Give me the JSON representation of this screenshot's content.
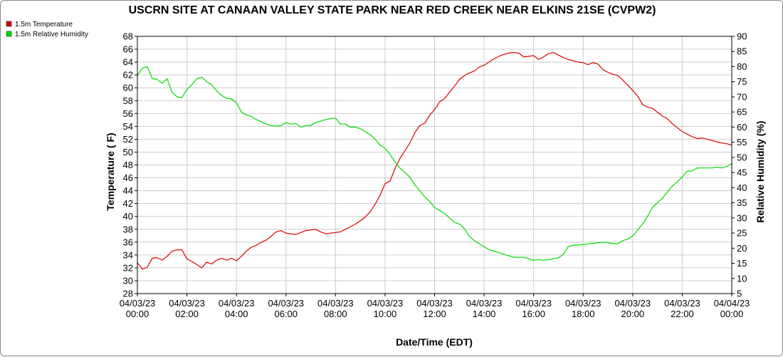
{
  "chart_data": {
    "type": "line",
    "title": "USCRN SITE AT CANAAN VALLEY STATE PARK NEAR RED CREEK NEAR ELKINS 21SE (CVPW2)",
    "xlabel": "Date/Time (EDT)",
    "ylabel_left": "Temperature ( F)",
    "ylabel_right": "Relative Humidity (%)",
    "x_ticks": [
      {
        "date": "04/03/23",
        "time": "00:00",
        "hour": 0
      },
      {
        "date": "04/03/23",
        "time": "02:00",
        "hour": 2
      },
      {
        "date": "04/03/23",
        "time": "04:00",
        "hour": 4
      },
      {
        "date": "04/03/23",
        "time": "06:00",
        "hour": 6
      },
      {
        "date": "04/03/23",
        "time": "08:00",
        "hour": 8
      },
      {
        "date": "04/03/23",
        "time": "10:00",
        "hour": 10
      },
      {
        "date": "04/03/23",
        "time": "12:00",
        "hour": 12
      },
      {
        "date": "04/03/23",
        "time": "14:00",
        "hour": 14
      },
      {
        "date": "04/03/23",
        "time": "16:00",
        "hour": 16
      },
      {
        "date": "04/03/23",
        "time": "18:00",
        "hour": 18
      },
      {
        "date": "04/03/23",
        "time": "20:00",
        "hour": 20
      },
      {
        "date": "04/03/23",
        "time": "22:00",
        "hour": 22
      },
      {
        "date": "04/04/23",
        "time": "00:00",
        "hour": 24
      }
    ],
    "xlim": [
      0,
      24
    ],
    "ylim_left": [
      28,
      68
    ],
    "ylim_right": [
      5,
      90
    ],
    "y_ticks_left": [
      28,
      30,
      32,
      34,
      36,
      38,
      40,
      42,
      44,
      46,
      48,
      50,
      52,
      54,
      56,
      58,
      60,
      62,
      64,
      66,
      68
    ],
    "y_ticks_right": [
      5,
      10,
      15,
      20,
      25,
      30,
      35,
      40,
      45,
      50,
      55,
      60,
      65,
      70,
      75,
      80,
      85,
      90
    ],
    "grid": true,
    "legend_position": "top-left",
    "series": [
      {
        "name": "1.5m Temperature",
        "axis": "left",
        "color": "#dd0000",
        "x": [
          0.0,
          0.2,
          0.4,
          0.6,
          0.8,
          1.0,
          1.2,
          1.4,
          1.6,
          1.8,
          2.0,
          2.2,
          2.4,
          2.6,
          2.8,
          3.0,
          3.2,
          3.4,
          3.6,
          3.8,
          4.0,
          4.2,
          4.4,
          4.6,
          4.8,
          5.0,
          5.2,
          5.4,
          5.6,
          5.8,
          6.0,
          6.2,
          6.4,
          6.6,
          6.8,
          7.0,
          7.2,
          7.4,
          7.6,
          7.8,
          8.0,
          8.2,
          8.4,
          8.6,
          8.8,
          9.0,
          9.2,
          9.4,
          9.6,
          9.8,
          10.0,
          10.2,
          10.4,
          10.6,
          10.8,
          11.0,
          11.2,
          11.4,
          11.6,
          11.8,
          12.0,
          12.2,
          12.4,
          12.6,
          12.8,
          13.0,
          13.2,
          13.4,
          13.6,
          13.8,
          14.0,
          14.2,
          14.4,
          14.6,
          14.8,
          15.0,
          15.2,
          15.4,
          15.6,
          15.8,
          16.0,
          16.2,
          16.4,
          16.6,
          16.8,
          17.0,
          17.2,
          17.4,
          17.6,
          17.8,
          18.0,
          18.2,
          18.4,
          18.6,
          18.8,
          19.0,
          19.2,
          19.4,
          19.6,
          19.8,
          20.0,
          20.2,
          20.4,
          20.6,
          20.8,
          21.0,
          21.2,
          21.4,
          21.6,
          21.8,
          22.0,
          22.2,
          22.4,
          22.6,
          22.8,
          23.0,
          23.2,
          23.4,
          23.6,
          23.8,
          24.0
        ],
        "values": [
          32.8,
          31.8,
          32.1,
          33.5,
          33.6,
          33.2,
          33.8,
          34.6,
          34.8,
          34.8,
          33.4,
          33.0,
          32.5,
          32.0,
          32.9,
          32.6,
          33.2,
          33.5,
          33.2,
          33.5,
          33.1,
          33.8,
          34.6,
          35.2,
          35.5,
          36.0,
          36.3,
          36.9,
          37.6,
          37.8,
          37.4,
          37.3,
          37.2,
          37.5,
          37.8,
          37.9,
          38.0,
          37.6,
          37.3,
          37.4,
          37.5,
          37.6,
          38.0,
          38.4,
          38.8,
          39.3,
          39.9,
          40.7,
          41.9,
          43.3,
          45.1,
          45.5,
          47.4,
          49.0,
          50.2,
          51.4,
          53.0,
          54.1,
          54.5,
          55.7,
          56.6,
          57.8,
          58.3,
          59.3,
          60.2,
          61.3,
          61.9,
          62.3,
          62.6,
          63.2,
          63.5,
          64.0,
          64.5,
          64.9,
          65.2,
          65.4,
          65.5,
          65.4,
          64.8,
          64.9,
          65.0,
          64.4,
          64.8,
          65.3,
          65.5,
          65.1,
          64.7,
          64.4,
          64.2,
          64.0,
          63.9,
          63.6,
          63.9,
          63.7,
          62.8,
          62.4,
          62.1,
          61.9,
          61.2,
          60.4,
          59.6,
          58.7,
          57.4,
          57.0,
          56.8,
          56.2,
          55.6,
          55.2,
          54.4,
          53.8,
          53.2,
          52.8,
          52.4,
          52.1,
          52.2,
          52.0,
          51.8,
          51.6,
          51.4,
          51.3,
          51.1
        ]
      },
      {
        "name": "1.5m Relative Humidity",
        "axis": "right",
        "color": "#00dd00",
        "x": [
          0.0,
          0.2,
          0.4,
          0.6,
          0.8,
          1.0,
          1.2,
          1.4,
          1.6,
          1.8,
          2.0,
          2.2,
          2.4,
          2.6,
          2.8,
          3.0,
          3.2,
          3.4,
          3.6,
          3.8,
          4.0,
          4.2,
          4.4,
          4.6,
          4.8,
          5.0,
          5.2,
          5.4,
          5.6,
          5.8,
          6.0,
          6.2,
          6.4,
          6.6,
          6.8,
          7.0,
          7.2,
          7.4,
          7.6,
          7.8,
          8.0,
          8.2,
          8.4,
          8.6,
          8.8,
          9.0,
          9.2,
          9.4,
          9.6,
          9.8,
          10.0,
          10.2,
          10.4,
          10.6,
          10.8,
          11.0,
          11.2,
          11.4,
          11.6,
          11.8,
          12.0,
          12.2,
          12.4,
          12.6,
          12.8,
          13.0,
          13.2,
          13.4,
          13.6,
          13.8,
          14.0,
          14.2,
          14.4,
          14.6,
          14.8,
          15.0,
          15.2,
          15.4,
          15.6,
          15.8,
          16.0,
          16.2,
          16.4,
          16.6,
          16.8,
          17.0,
          17.2,
          17.4,
          17.6,
          17.8,
          18.0,
          18.2,
          18.4,
          18.6,
          18.8,
          19.0,
          19.2,
          19.4,
          19.6,
          19.8,
          20.0,
          20.2,
          20.4,
          20.6,
          20.8,
          21.0,
          21.2,
          21.4,
          21.6,
          21.8,
          22.0,
          22.2,
          22.4,
          22.6,
          22.8,
          23.0,
          23.2,
          23.4,
          23.6,
          23.8,
          24.0
        ],
        "values": [
          77.0,
          79.5,
          80.0,
          76.0,
          75.8,
          74.5,
          76.0,
          71.5,
          70.0,
          69.8,
          72.5,
          74.0,
          76.0,
          76.5,
          75.0,
          74.0,
          72.0,
          70.5,
          69.5,
          69.3,
          68.0,
          65.0,
          64.0,
          63.5,
          62.5,
          61.8,
          61.0,
          60.5,
          60.3,
          60.5,
          61.5,
          61.0,
          61.2,
          60.0,
          60.5,
          60.5,
          61.5,
          62.0,
          62.5,
          62.8,
          63.0,
          61.0,
          61.0,
          60.0,
          60.0,
          59.5,
          58.5,
          57.5,
          56.0,
          54.0,
          53.0,
          51.0,
          48.5,
          46.5,
          45.0,
          43.5,
          41.0,
          39.0,
          37.0,
          35.5,
          33.5,
          32.5,
          31.5,
          30.0,
          28.5,
          28.0,
          26.5,
          24.0,
          22.5,
          21.5,
          20.5,
          19.5,
          19.0,
          18.5,
          18.0,
          17.5,
          17.0,
          17.0,
          17.0,
          16.5,
          16.0,
          16.2,
          16.0,
          16.2,
          16.5,
          16.8,
          18.0,
          20.5,
          21.0,
          21.0,
          21.2,
          21.4,
          21.6,
          21.8,
          22.0,
          21.8,
          21.5,
          21.5,
          22.5,
          23.0,
          24.0,
          26.0,
          28.0,
          30.5,
          33.5,
          35.0,
          36.5,
          38.5,
          40.5,
          42.0,
          43.5,
          45.5,
          45.5,
          46.5,
          46.5,
          46.5,
          46.5,
          46.8,
          46.5,
          47.0,
          48.0
        ]
      }
    ]
  }
}
